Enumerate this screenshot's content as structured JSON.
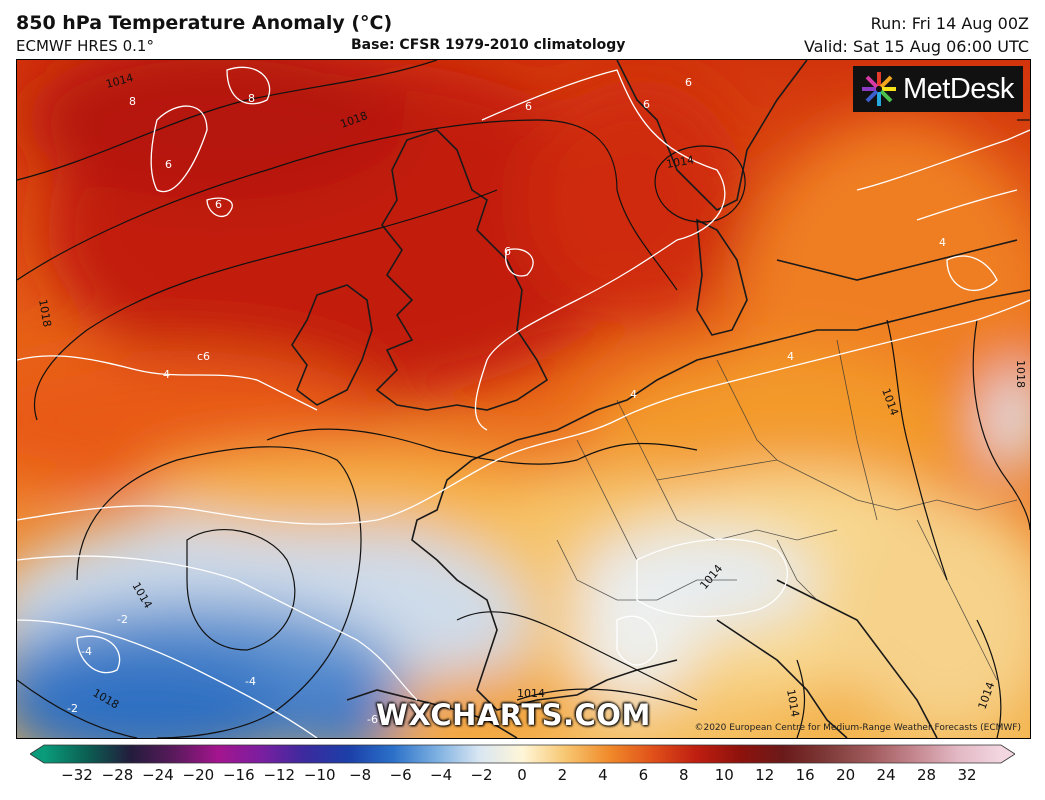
{
  "header": {
    "title": "850 hPa Temperature Anomaly (°C)",
    "model": "ECMWF HRES 0.1°",
    "base": "Base: CFSR 1979-2010 climatology",
    "run": "Run: Fri 14 Aug 00Z",
    "valid": "Valid: Sat 15 Aug 06:00 UTC"
  },
  "brand": {
    "name": "MetDesk",
    "icon": "metdesk-logo-icon"
  },
  "watermark": "WXCHARTS.COM",
  "credit": "©2020 European Centre for Medium-Range Weather Forecasts (ECMWF)",
  "map": {
    "isobar_labels": [
      "1014",
      "1018",
      "1014",
      "1018",
      "1014",
      "1014",
      "1018",
      "1014",
      "1014",
      "1018",
      "1014",
      "1014"
    ],
    "anomaly_labels": [
      "8",
      "8",
      "6",
      "6",
      "6",
      "6",
      "6",
      "c6",
      "4",
      "4",
      "4",
      "4",
      "-2",
      "-4",
      "-4",
      "-2",
      "-6",
      "6"
    ],
    "colors": {
      "hot": "#c21a08",
      "warm": "#e8520e",
      "mild": "#f4a028",
      "light": "#fbe6a8",
      "cool": "#dde8f2",
      "cold": "#2f6fc2"
    }
  },
  "colorbar": {
    "ticks": [
      "−32",
      "−28",
      "−24",
      "−20",
      "−16",
      "−12",
      "−10",
      "−8",
      "−6",
      "−4",
      "−2",
      "0",
      "2",
      "4",
      "6",
      "8",
      "10",
      "12",
      "16",
      "20",
      "24",
      "28",
      "32"
    ],
    "stops": [
      "#0a9c7a",
      "#0b5e52",
      "#231c3c",
      "#5a1a5c",
      "#a4148e",
      "#7a1fa0",
      "#3b2a9e",
      "#1c3fa8",
      "#2a6fc8",
      "#7aaee0",
      "#d8e6f2",
      "#fff6d8",
      "#f7c670",
      "#f08a2a",
      "#e0501a",
      "#bf1e10",
      "#8e120c",
      "#6a1a1a",
      "#7e3a38",
      "#a05a5c",
      "#c4868e",
      "#e2b8c4",
      "#f2d6e0"
    ]
  }
}
